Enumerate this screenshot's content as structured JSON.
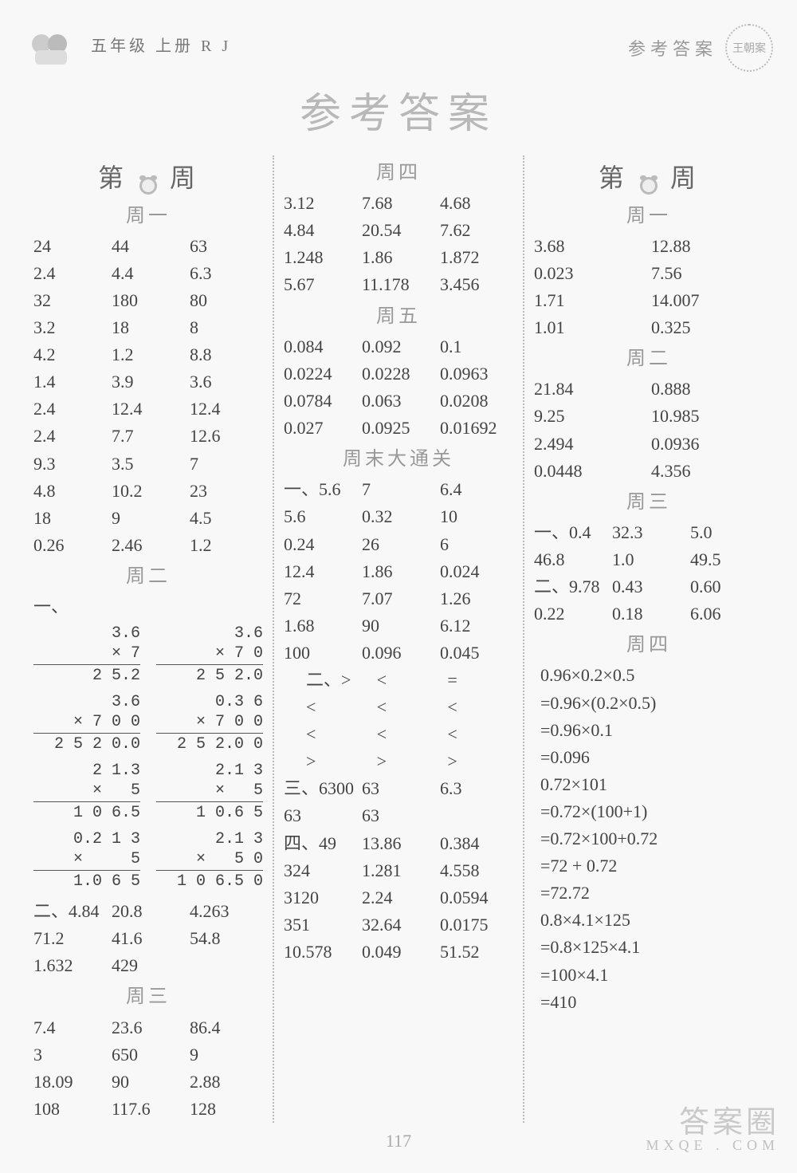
{
  "header": {
    "grade": "五年级 上册 R J",
    "answers_label": "参考答案",
    "seal_text": "王朝案"
  },
  "title": "参考答案",
  "page_number": "117",
  "watermark": {
    "main": "答案圈",
    "sub": "MXQE . COM"
  },
  "col1": {
    "week_prefix": "第",
    "week_num": "1",
    "week_suffix": "周",
    "day1_label": "周一",
    "day1_grid": [
      "24",
      "44",
      "63",
      "2.4",
      "4.4",
      "6.3",
      "32",
      "180",
      "80",
      "3.2",
      "18",
      "8",
      "4.2",
      "1.2",
      "8.8",
      "1.4",
      "3.9",
      "3.6",
      "2.4",
      "12.4",
      "12.4",
      "2.4",
      "7.7",
      "12.6",
      "9.3",
      "3.5",
      "7",
      "4.8",
      "10.2",
      "23",
      "18",
      "9",
      "4.5",
      "0.26",
      "2.46",
      "1.2"
    ],
    "day2_label": "周二",
    "sec1_label": "一、",
    "calc1": {
      "a": "3.6",
      "b": "× 7",
      "r": "2 5.2"
    },
    "calc2": {
      "a": "3.6",
      "b": "× 7 0",
      "r": "2 5 2.0"
    },
    "calc3": {
      "a": "3.6",
      "b": "× 7 0 0",
      "r": "2 5 2 0.0"
    },
    "calc4": {
      "a": "0.3 6",
      "b": "× 7 0 0",
      "r": "2 5 2.0 0"
    },
    "calc5": {
      "a": "2 1.3",
      "b": "×   5",
      "r": "1 0 6.5"
    },
    "calc6": {
      "a": "2.1 3",
      "b": "×   5",
      "r": "1 0.6 5"
    },
    "calc7": {
      "a": "0.2 1 3",
      "b": "×     5",
      "r": "1.0 6 5"
    },
    "calc8": {
      "a": "2.1 3",
      "b": "×   5 0",
      "r": "1 0 6.5 0"
    },
    "sec2_label": "二、",
    "sec2_grid": [
      "4.84",
      "20.8",
      "4.263",
      "71.2",
      "41.6",
      "54.8",
      "1.632",
      "429",
      ""
    ],
    "day3_label": "周三",
    "day3_grid": [
      "7.4",
      "23.6",
      "86.4",
      "3",
      "650",
      "9",
      "18.09",
      "90",
      "2.88",
      "108",
      "117.6",
      "128"
    ]
  },
  "col2": {
    "day4_label": "周四",
    "day4_grid": [
      "3.12",
      "7.68",
      "4.68",
      "4.84",
      "20.54",
      "7.62",
      "1.248",
      "1.86",
      "1.872",
      "5.67",
      "11.178",
      "3.456"
    ],
    "day5_label": "周五",
    "day5_grid": [
      "0.084",
      "0.092",
      "0.1",
      "0.0224",
      "0.0228",
      "0.0963",
      "0.0784",
      "0.063",
      "0.0208",
      "0.027",
      "0.0925",
      "0.01692"
    ],
    "weekend_label": "周末大通关",
    "sec1_label": "一、",
    "sec1_grid": [
      "5.6",
      "7",
      "6.4",
      "5.6",
      "0.32",
      "10",
      "0.24",
      "26",
      "6",
      "12.4",
      "1.86",
      "0.024",
      "72",
      "7.07",
      "1.26",
      "1.68",
      "90",
      "6.12",
      "100",
      "0.096",
      "0.045"
    ],
    "sec2_label": "二、",
    "sec2_grid": [
      ">",
      "<",
      "=",
      "<",
      "<",
      "<",
      "<",
      "<",
      "<",
      ">",
      ">",
      ">"
    ],
    "sec3_label": "三、",
    "sec3_grid": [
      "6300",
      "63",
      "6.3",
      "63",
      "63",
      ""
    ],
    "sec4_label": "四、",
    "sec4_grid": [
      "49",
      "13.86",
      "0.384",
      "324",
      "1.281",
      "4.558",
      "3120",
      "2.24",
      "0.0594",
      "351",
      "32.64",
      "0.0175",
      "10.578",
      "0.049",
      "51.52"
    ]
  },
  "col3": {
    "week_prefix": "第",
    "week_num": "2",
    "week_suffix": "周",
    "day1_label": "周一",
    "day1_grid": [
      "3.68",
      "12.88",
      "0.023",
      "7.56",
      "1.71",
      "14.007",
      "1.01",
      "0.325"
    ],
    "day2_label": "周二",
    "day2_grid": [
      "21.84",
      "0.888",
      "9.25",
      "10.985",
      "2.494",
      "0.0936",
      "0.0448",
      "4.356"
    ],
    "day3_label": "周三",
    "sec1_label": "一、",
    "sec1_grid": [
      "0.4",
      "32.3",
      "5.0",
      "46.8",
      "1.0",
      "49.5"
    ],
    "sec2_label": "二、",
    "sec2_grid": [
      "9.78",
      "0.43",
      "0.60",
      "0.22",
      "0.18",
      "6.06"
    ],
    "day4_label": "周四",
    "eq": [
      "  0.96×0.2×0.5",
      "=0.96×(0.2×0.5)",
      "=0.96×0.1",
      "=0.096",
      "  0.72×101",
      "=0.72×(100+1)",
      "=0.72×100+0.72",
      "=72 + 0.72",
      "=72.72",
      "  0.8×4.1×125",
      "=0.8×125×4.1",
      "=100×4.1",
      "=410"
    ]
  }
}
